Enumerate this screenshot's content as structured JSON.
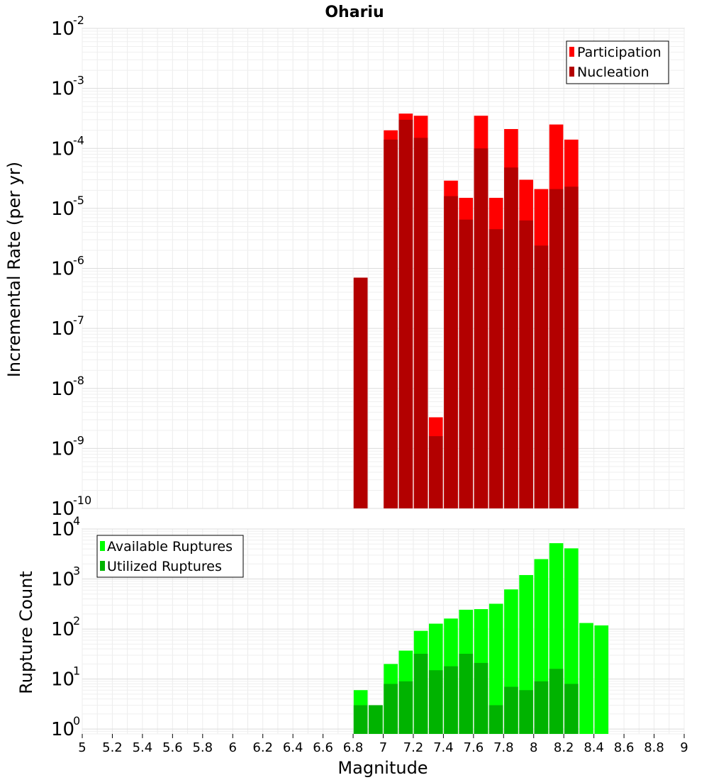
{
  "chart_data": [
    {
      "type": "bar",
      "title": "Ohariu",
      "ylabel": "Incremental Rate (per yr)",
      "xlabel": "",
      "yscale": "log",
      "ylim": [
        1e-10,
        0.01
      ],
      "xlim": [
        5,
        9
      ],
      "bin_width": 0.1,
      "grid": true,
      "legend_position": "top-right",
      "y_tick_exponents": [
        "-10",
        "-9",
        "-8",
        "-7",
        "-6",
        "-5",
        "-4",
        "-3",
        "-2"
      ],
      "series": [
        {
          "name": "Participation",
          "color": "#ff0000",
          "x": [
            6.85,
            7.05,
            7.15,
            7.25,
            7.35,
            7.45,
            7.55,
            7.65,
            7.75,
            7.85,
            7.95,
            8.05,
            8.15,
            8.25
          ],
          "values": [
            7e-07,
            0.0002,
            0.00038,
            0.00035,
            3.3e-09,
            2.9e-05,
            1.5e-05,
            0.00035,
            1.5e-05,
            0.00021,
            3e-05,
            2.1e-05,
            0.00025,
            0.00014
          ]
        },
        {
          "name": "Nucleation",
          "color": "#b30000",
          "x": [
            6.85,
            7.05,
            7.15,
            7.25,
            7.35,
            7.45,
            7.55,
            7.65,
            7.75,
            7.85,
            7.95,
            8.05,
            8.15,
            8.25
          ],
          "values": [
            7e-07,
            0.00014,
            0.0003,
            0.00015,
            1.6e-09,
            1.6e-05,
            6.5e-06,
            0.0001,
            4.5e-06,
            4.8e-05,
            6.3e-06,
            2.4e-06,
            2.1e-05,
            2.3e-05
          ]
        }
      ]
    },
    {
      "type": "bar",
      "title": "",
      "ylabel": "Rupture Count",
      "xlabel": "Magnitude",
      "yscale": "log",
      "ylim": [
        0.8,
        10000
      ],
      "xlim": [
        5,
        9
      ],
      "bin_width": 0.1,
      "grid": true,
      "legend_position": "top-left",
      "y_tick_exponents": [
        "0",
        "1",
        "2",
        "3",
        "4"
      ],
      "x_ticks": [
        "5",
        "5.2",
        "5.4",
        "5.6",
        "5.8",
        "6",
        "6.2",
        "6.4",
        "6.6",
        "6.8",
        "7",
        "7.2",
        "7.4",
        "7.6",
        "7.8",
        "8",
        "8.2",
        "8.4",
        "8.6",
        "8.8",
        "9"
      ],
      "series": [
        {
          "name": "Available Ruptures",
          "color": "#00ff00",
          "x": [
            6.85,
            6.95,
            7.05,
            7.15,
            7.25,
            7.35,
            7.45,
            7.55,
            7.65,
            7.75,
            7.85,
            7.95,
            8.05,
            8.15,
            8.25,
            8.35,
            8.45
          ],
          "values": [
            6,
            3,
            20,
            37,
            92,
            128,
            162,
            243,
            250,
            320,
            620,
            1200,
            2500,
            5200,
            4100,
            132,
            118
          ]
        },
        {
          "name": "Utilized Ruptures",
          "color": "#00b300",
          "x": [
            6.85,
            6.95,
            7.05,
            7.15,
            7.25,
            7.35,
            7.45,
            7.55,
            7.65,
            7.75,
            7.85,
            7.95,
            8.05,
            8.15,
            8.25,
            8.35,
            8.45
          ],
          "values": [
            3,
            3,
            8,
            9,
            32,
            15,
            18,
            32,
            21,
            3,
            7,
            6,
            9,
            16,
            8,
            0,
            0
          ]
        }
      ]
    }
  ]
}
